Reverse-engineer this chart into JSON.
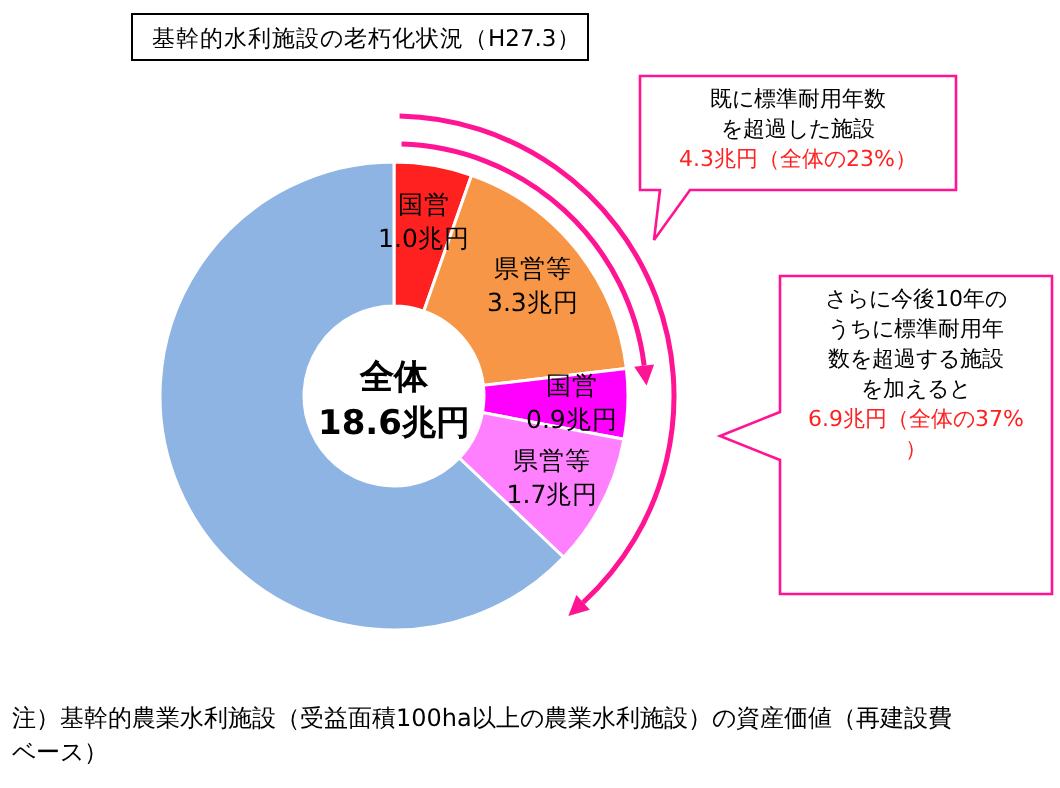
{
  "chart_data": {
    "type": "donut",
    "title": "基幹的水利施設の老朽化状況（H27.3）",
    "categories": [
      "国営",
      "県営等",
      "国営",
      "県営等",
      null
    ],
    "values": [
      1.0,
      3.3,
      0.9,
      1.7,
      11.7
    ],
    "value_labels": [
      "1.0兆円",
      "3.3兆円",
      "0.9兆円",
      "1.7兆円",
      null
    ],
    "colors": [
      "#ff2020",
      "#f79646",
      "#ff00ff",
      "#ff80ff",
      "#8db4e2"
    ],
    "annotations": [
      "全体",
      "18.6兆円",
      "既に標準耐用年数を超過した施設",
      "4.3兆円（全体の23%）",
      "さらに今後10年のうちに標準耐用年数を超過する施設を加えると",
      "6.9兆円（全体の37%）",
      "注）基幹的農業水利施設（受益面積100ha以上の農業水利施設）の資産価値（再建設費ベース）"
    ]
  }
}
